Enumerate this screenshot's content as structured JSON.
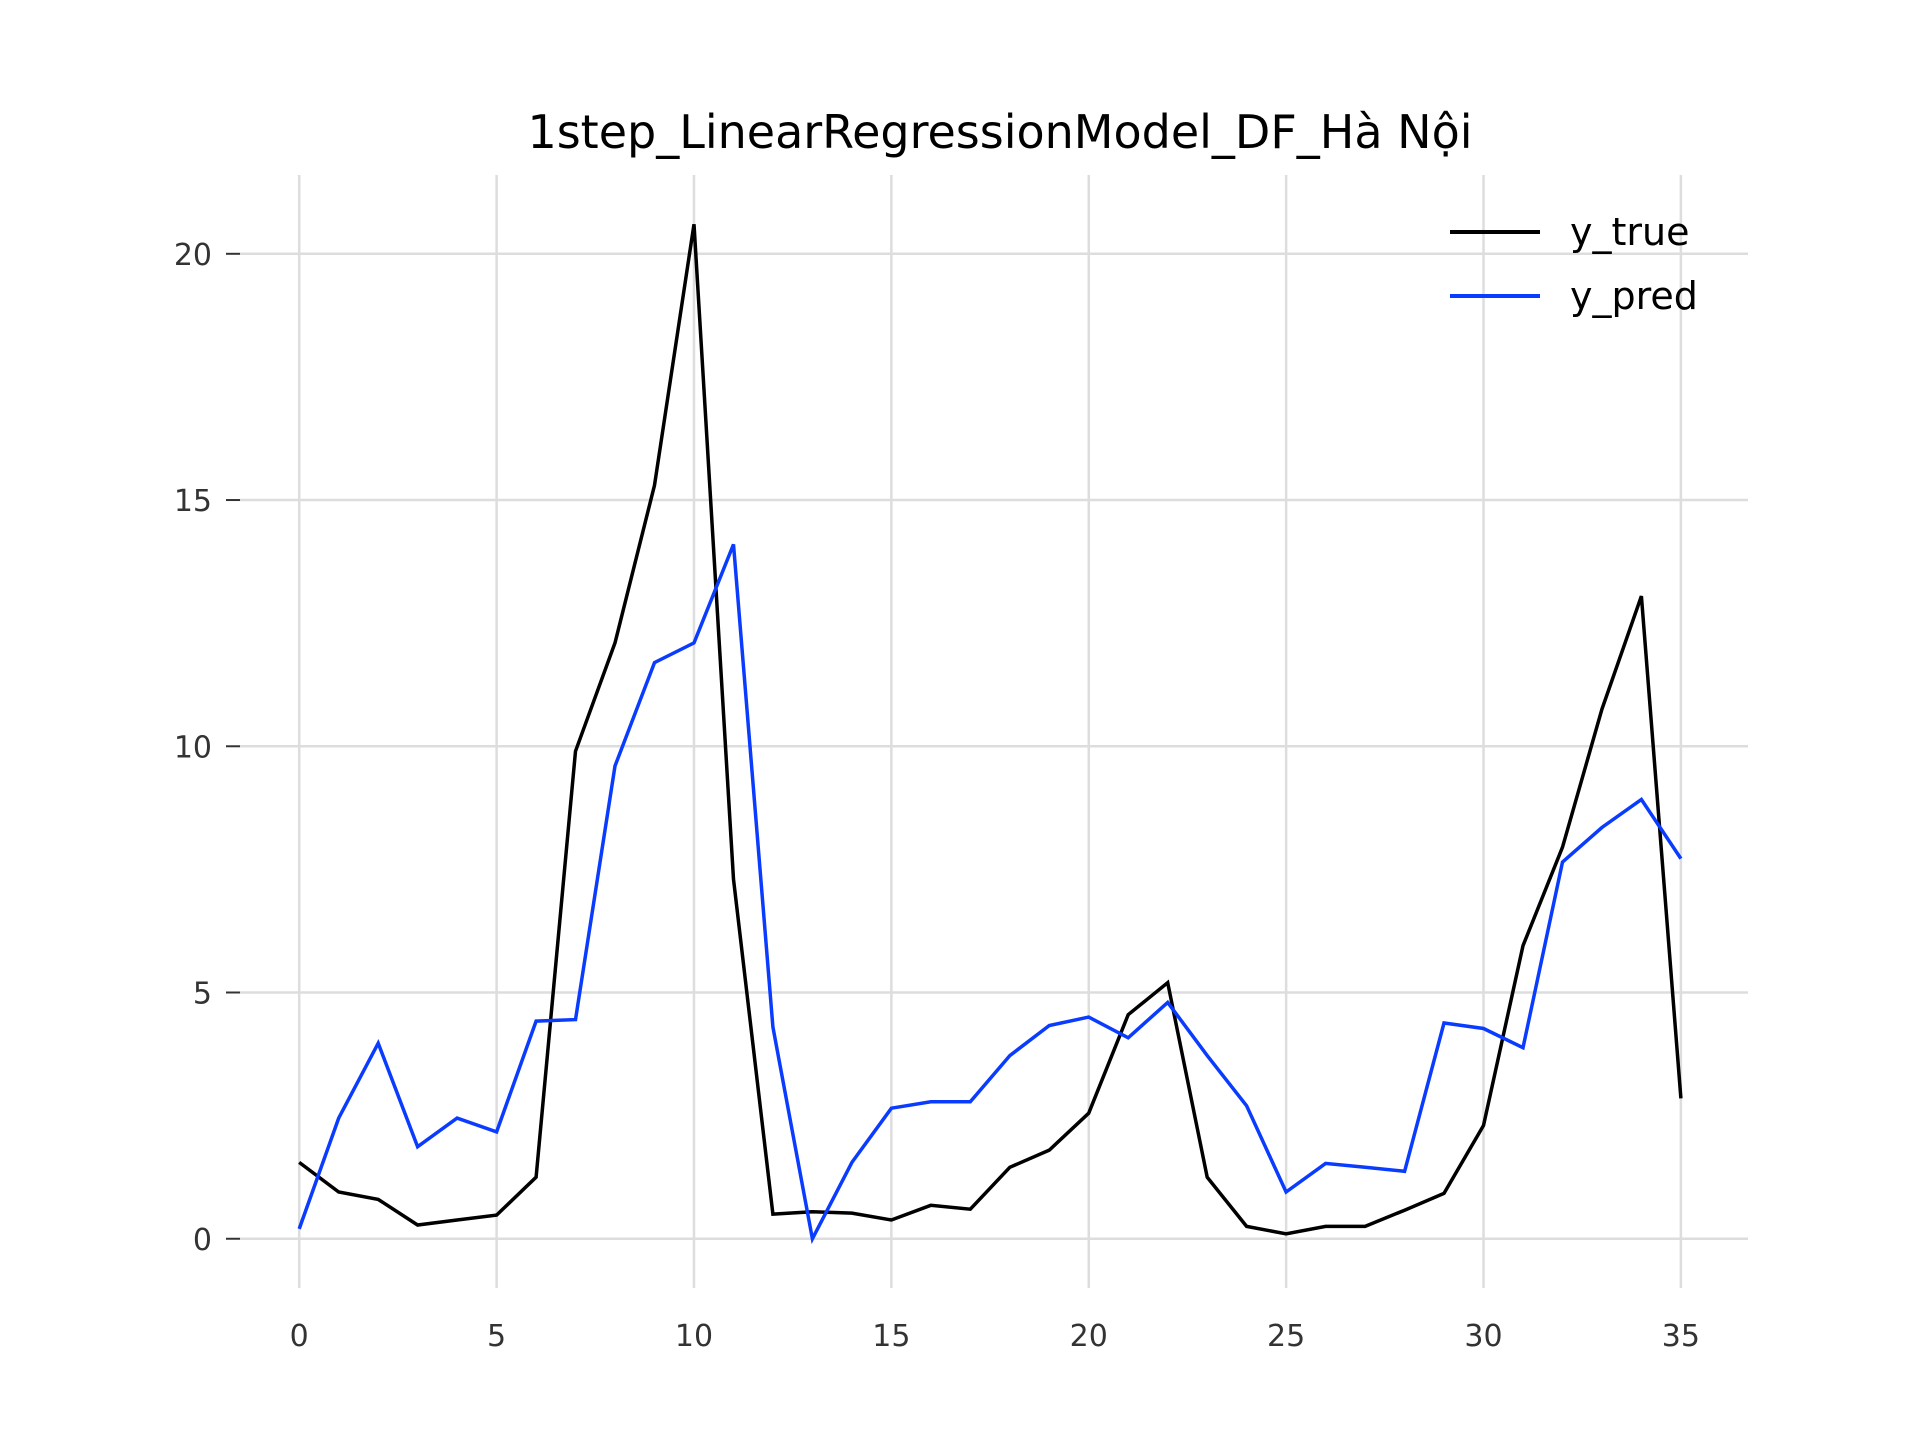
{
  "chart_data": {
    "type": "line",
    "title": "1step_LinearRegressionModel_DF_Hà Nội",
    "xlabel": "",
    "ylabel": "",
    "xlim": [
      -1.5,
      36.7
    ],
    "ylim": [
      -1.0,
      21.6
    ],
    "xticks": [
      0,
      5,
      10,
      15,
      20,
      25,
      30,
      35
    ],
    "yticks": [
      0,
      5,
      10,
      15,
      20
    ],
    "grid": true,
    "legend_position": "top-right",
    "x": [
      0,
      1,
      2,
      3,
      4,
      5,
      6,
      7,
      8,
      9,
      10,
      11,
      12,
      13,
      14,
      15,
      16,
      17,
      18,
      19,
      20,
      21,
      22,
      23,
      24,
      25,
      26,
      27,
      28,
      29,
      30,
      31,
      32,
      33,
      34,
      35
    ],
    "series": [
      {
        "name": "y_true",
        "color": "#000000",
        "values": [
          1.55,
          0.95,
          0.8,
          0.28,
          0.38,
          0.48,
          1.25,
          9.9,
          12.1,
          15.3,
          20.6,
          7.3,
          0.5,
          0.55,
          0.52,
          0.38,
          0.68,
          0.6,
          1.45,
          1.8,
          2.55,
          4.55,
          5.2,
          1.25,
          0.25,
          0.1,
          0.25,
          0.25,
          0.58,
          0.92,
          2.3,
          5.95,
          7.95,
          10.75,
          13.05,
          2.85
        ]
      },
      {
        "name": "y_pred",
        "color": "#0a3cff",
        "values": [
          0.2,
          2.45,
          3.97,
          1.87,
          2.45,
          2.17,
          4.42,
          4.45,
          9.6,
          11.7,
          12.1,
          14.1,
          4.3,
          0.0,
          1.55,
          2.65,
          2.78,
          2.78,
          3.72,
          4.33,
          4.5,
          4.08,
          4.8,
          3.72,
          2.7,
          0.95,
          1.53,
          1.45,
          1.37,
          4.38,
          4.27,
          3.88,
          7.65,
          8.35,
          8.92,
          7.72
        ]
      }
    ]
  }
}
